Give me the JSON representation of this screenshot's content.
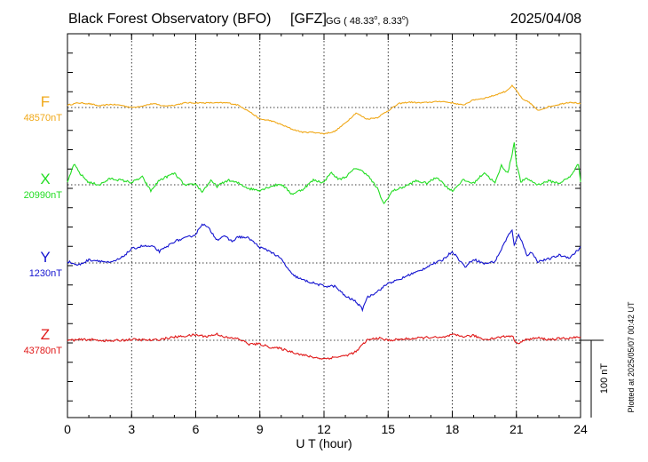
{
  "header": {
    "station": "Black Forest Observatory (BFO)",
    "institute": "[GFZ]",
    "coords_prefix": "GG ( 48.33",
    "coords_mid": ",   8.33",
    "coords_suffix": ")",
    "degree_mark": "o",
    "date": "2025/04/08"
  },
  "footer": {
    "plotted_at": "Plotted at 2025/05/07 00:42 UT"
  },
  "chart_data": {
    "type": "line",
    "title": "Black Forest Observatory (BFO)",
    "xlabel": "U T (hour)",
    "ylabel": "",
    "xlim": [
      0,
      24
    ],
    "x_ticks": [
      "0",
      "3",
      "6",
      "9",
      "12",
      "15",
      "18",
      "21",
      "24"
    ],
    "grid": true,
    "scale_bar": {
      "label": "100 nT",
      "value_nT": 100
    },
    "series": [
      {
        "name": "F",
        "baseline_label": "48570nT",
        "baseline_nT": 48570,
        "color": "#f0a818",
        "x": [
          0,
          0.5,
          1,
          1.5,
          2,
          2.5,
          3,
          3.5,
          4,
          4.5,
          5,
          5.5,
          6,
          6.5,
          7,
          7.5,
          8,
          8.5,
          9,
          9.5,
          10,
          10.5,
          11,
          11.5,
          12,
          12.5,
          13,
          13.5,
          14,
          14.5,
          15,
          15.5,
          16,
          16.5,
          17,
          17.5,
          18,
          18.5,
          19,
          19.5,
          20,
          20.5,
          20.8,
          21,
          21.3,
          21.6,
          22,
          22.5,
          23,
          23.5,
          24
        ],
        "values": [
          3,
          6,
          5,
          2,
          4,
          3,
          0,
          2,
          5,
          2,
          3,
          6,
          6,
          6,
          6,
          6,
          3,
          -5,
          -15,
          -17,
          -22,
          -28,
          -32,
          -32,
          -34,
          -31,
          -20,
          -7,
          -15,
          -13,
          -4,
          5,
          7,
          6,
          7,
          8,
          6,
          3,
          10,
          12,
          16,
          21,
          28,
          22,
          10,
          7,
          -4,
          1,
          4,
          7,
          5
        ]
      },
      {
        "name": "X",
        "baseline_label": "20990nT",
        "baseline_nT": 20990,
        "color": "#22dd22",
        "x": [
          0,
          0.3,
          0.6,
          1,
          1.5,
          2,
          2.5,
          3,
          3.5,
          3.9,
          4.3,
          5,
          5.5,
          6,
          6.3,
          6.7,
          7,
          7.5,
          8,
          8.5,
          9,
          9.5,
          10,
          10.5,
          11,
          11.5,
          12,
          12.3,
          12.7,
          13,
          13.5,
          14,
          14.5,
          14.8,
          15.2,
          15.8,
          16.3,
          16.8,
          17.3,
          17.7,
          18,
          18.5,
          19,
          19.5,
          20,
          20.3,
          20.6,
          20.8,
          20.9,
          21,
          21.2,
          21.5,
          22,
          22.5,
          23,
          23.5,
          23.9,
          24
        ],
        "values": [
          2,
          27,
          14,
          3,
          0,
          8,
          6,
          3,
          10,
          -8,
          6,
          15,
          -1,
          1,
          -9,
          5,
          -2,
          6,
          2,
          -5,
          -7,
          -2,
          1,
          -12,
          -6,
          6,
          3,
          16,
          7,
          10,
          22,
          14,
          -5,
          -25,
          -8,
          -2,
          5,
          2,
          10,
          -2,
          -8,
          6,
          2,
          16,
          2,
          25,
          15,
          40,
          55,
          28,
          4,
          8,
          0,
          5,
          2,
          10,
          27,
          5
        ]
      },
      {
        "name": "Y",
        "baseline_label": "1230nT",
        "baseline_nT": 1230,
        "color": "#1414d0",
        "x": [
          0,
          0.5,
          1,
          1.5,
          2,
          2.5,
          3,
          3.5,
          4,
          4.3,
          4.6,
          5,
          5.5,
          6,
          6.3,
          6.6,
          7,
          7.3,
          7.7,
          8,
          8.5,
          9,
          9.5,
          10,
          10.5,
          11,
          11.5,
          12,
          12.5,
          13,
          13.5,
          13.8,
          14,
          14.3,
          14.7,
          15,
          15.5,
          16,
          16.5,
          17,
          17.5,
          18,
          18.3,
          18.6,
          19,
          19.5,
          20,
          20.3,
          20.6,
          20.8,
          20.9,
          21.1,
          21.3,
          21.5,
          21.7,
          22,
          22.5,
          23,
          23.5,
          24
        ],
        "values": [
          2,
          -3,
          4,
          3,
          0,
          6,
          18,
          22,
          21,
          15,
          20,
          28,
          32,
          37,
          51,
          45,
          30,
          35,
          28,
          34,
          32,
          20,
          15,
          5,
          -15,
          -22,
          -26,
          -30,
          -30,
          -43,
          -50,
          -60,
          -45,
          -40,
          -33,
          -26,
          -22,
          -15,
          -10,
          -2,
          3,
          15,
          5,
          -5,
          5,
          -1,
          2,
          18,
          35,
          42,
          22,
          38,
          24,
          10,
          14,
          2,
          5,
          10,
          7,
          20
        ]
      },
      {
        "name": "Z",
        "baseline_label": "43780nT",
        "baseline_nT": 43780,
        "color": "#e01818",
        "x": [
          0,
          1,
          2,
          3,
          4,
          5,
          6,
          6.5,
          7,
          7.5,
          8,
          8.5,
          9,
          9.5,
          10,
          10.5,
          11,
          11.5,
          12,
          12.5,
          13,
          13.5,
          14,
          14.5,
          15,
          16,
          17,
          17.5,
          18,
          18.5,
          19,
          19.5,
          20,
          20.5,
          20.8,
          21,
          21.2,
          21.5,
          22,
          22.5,
          23,
          24
        ],
        "values": [
          0,
          1,
          -1,
          1,
          0,
          4,
          7,
          5,
          8,
          3,
          2,
          -5,
          -5,
          -9,
          -11,
          -15,
          -19,
          -22,
          -24,
          -22,
          -20,
          -15,
          0,
          3,
          0,
          2,
          4,
          3,
          7,
          5,
          6,
          1,
          3,
          5,
          6,
          -4,
          -2,
          1,
          3,
          1,
          2,
          4
        ]
      }
    ]
  }
}
